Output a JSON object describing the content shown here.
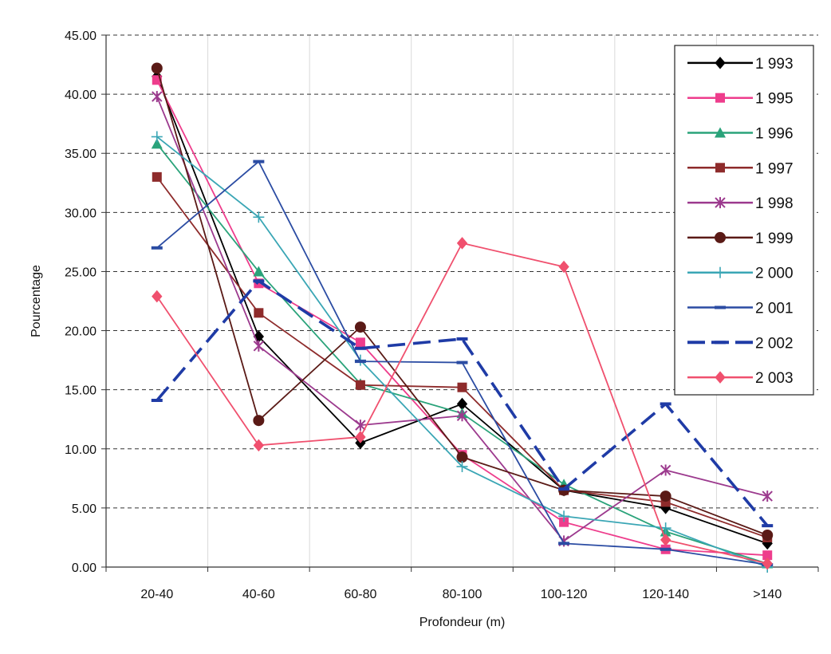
{
  "chart_data": {
    "type": "line",
    "title": "",
    "xlabel": "Profondeur (m)",
    "ylabel": "Pourcentage",
    "categories": [
      "20-40",
      "40-60",
      "60-80",
      "80-100",
      "100-120",
      "120-140",
      ">140"
    ],
    "ylim": [
      0,
      45
    ],
    "yticks": [
      "0.00",
      "5.00",
      "10.00",
      "15.00",
      "20.00",
      "25.00",
      "30.00",
      "35.00",
      "40.00",
      "45.00"
    ],
    "grid": {
      "horizontal": "dashed",
      "vertical": "solid-light"
    },
    "legend_position": "right",
    "series": [
      {
        "name": "1 993",
        "color": "#000000",
        "marker": "diamond",
        "dash": "solid",
        "values": [
          41.5,
          19.5,
          10.5,
          13.8,
          6.5,
          5.0,
          2.0
        ]
      },
      {
        "name": "1 995",
        "color": "#ee3d8c",
        "marker": "square",
        "dash": "solid",
        "values": [
          41.2,
          24.0,
          19.0,
          9.5,
          3.8,
          1.5,
          1.0
        ]
      },
      {
        "name": "1 996",
        "color": "#2aa37a",
        "marker": "triangle",
        "dash": "solid",
        "values": [
          35.8,
          25.0,
          15.5,
          13.0,
          7.0,
          3.0,
          0.3
        ]
      },
      {
        "name": "1 997",
        "color": "#8e2b2b",
        "marker": "square",
        "dash": "solid",
        "values": [
          33.0,
          21.5,
          15.4,
          15.2,
          6.5,
          5.5,
          2.5
        ]
      },
      {
        "name": "1 998",
        "color": "#9c3a8e",
        "marker": "star",
        "dash": "solid",
        "values": [
          39.8,
          18.7,
          12.0,
          12.8,
          2.2,
          8.2,
          6.0
        ]
      },
      {
        "name": "1 999",
        "color": "#5a1a16",
        "marker": "circle",
        "dash": "solid",
        "values": [
          42.2,
          12.4,
          20.3,
          9.3,
          6.5,
          6.0,
          2.7
        ]
      },
      {
        "name": "2 000",
        "color": "#3aa6b5",
        "marker": "plus",
        "dash": "solid",
        "values": [
          36.4,
          29.6,
          17.5,
          8.5,
          4.3,
          3.3,
          0.0
        ]
      },
      {
        "name": "2 001",
        "color": "#2b4ca3",
        "marker": "dash",
        "dash": "solid",
        "values": [
          27.0,
          34.3,
          17.4,
          17.3,
          2.0,
          1.5,
          0.2
        ]
      },
      {
        "name": "2 002",
        "color": "#1f3ba6",
        "marker": "dash",
        "dash": "long-dash",
        "values": [
          14.1,
          24.2,
          18.5,
          19.3,
          6.6,
          13.8,
          3.5
        ]
      },
      {
        "name": "2 003",
        "color": "#f0506e",
        "marker": "diamond",
        "dash": "solid",
        "values": [
          22.9,
          10.3,
          11.0,
          27.4,
          25.4,
          2.3,
          0.3
        ]
      }
    ]
  }
}
